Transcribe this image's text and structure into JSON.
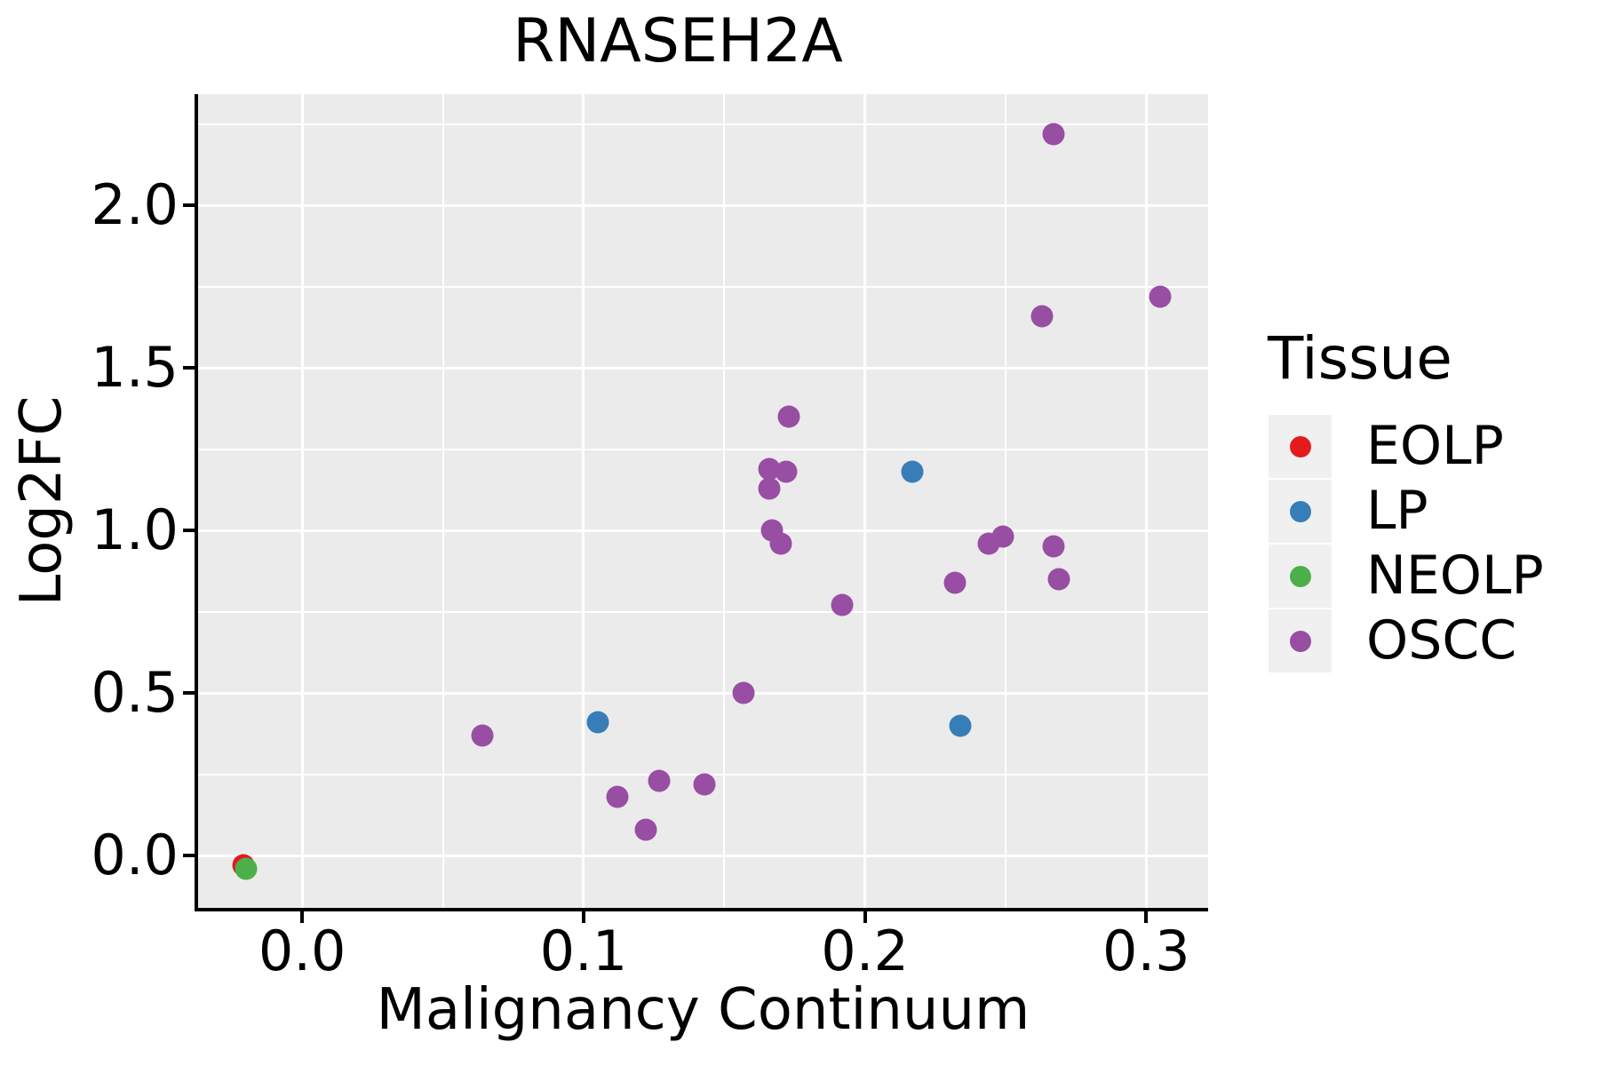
{
  "title": "RNASEH2A",
  "legend": {
    "title": "Tissue",
    "items": [
      {
        "label": "EOLP",
        "color": "#E41A1C"
      },
      {
        "label": "LP",
        "color": "#377EB8"
      },
      {
        "label": "NEOLP",
        "color": "#4DAF4A"
      },
      {
        "label": "OSCC",
        "color": "#984EA3"
      }
    ]
  },
  "chart_data": {
    "type": "scatter",
    "title": "RNASEH2A",
    "xlabel": "Malignancy Continuum",
    "ylabel": "Log2FC",
    "xlim": [
      -0.037,
      0.322
    ],
    "ylim": [
      -0.161,
      2.342
    ],
    "grid": true,
    "legend_position": "right",
    "x_ticks": [
      {
        "value": 0.0,
        "label": "0.0"
      },
      {
        "value": 0.1,
        "label": "0.1"
      },
      {
        "value": 0.2,
        "label": "0.2"
      },
      {
        "value": 0.3,
        "label": "0.3"
      }
    ],
    "y_ticks": [
      {
        "value": 0.0,
        "label": "0.0"
      },
      {
        "value": 0.5,
        "label": "0.5"
      },
      {
        "value": 1.0,
        "label": "1.0"
      },
      {
        "value": 1.5,
        "label": "1.5"
      },
      {
        "value": 2.0,
        "label": "2.0"
      }
    ],
    "x_minor": [
      0.05,
      0.15,
      0.25
    ],
    "y_minor": [
      0.25,
      0.75,
      1.25,
      1.75,
      2.25
    ],
    "series": [
      {
        "name": "EOLP",
        "color": "#E41A1C",
        "points": [
          [
            -0.021,
            -0.03
          ]
        ]
      },
      {
        "name": "LP",
        "color": "#377EB8",
        "points": [
          [
            0.105,
            0.41
          ],
          [
            0.217,
            1.18
          ],
          [
            0.234,
            0.4
          ]
        ]
      },
      {
        "name": "NEOLP",
        "color": "#4DAF4A",
        "points": [
          [
            -0.02,
            -0.04
          ]
        ]
      },
      {
        "name": "OSCC",
        "color": "#984EA3",
        "points": [
          [
            0.064,
            0.37
          ],
          [
            0.112,
            0.18
          ],
          [
            0.122,
            0.08
          ],
          [
            0.127,
            0.23
          ],
          [
            0.143,
            0.22
          ],
          [
            0.157,
            0.5
          ],
          [
            0.166,
            1.19
          ],
          [
            0.166,
            1.13
          ],
          [
            0.167,
            1.0
          ],
          [
            0.17,
            0.96
          ],
          [
            0.172,
            1.18
          ],
          [
            0.173,
            1.35
          ],
          [
            0.192,
            0.77
          ],
          [
            0.232,
            0.84
          ],
          [
            0.244,
            0.96
          ],
          [
            0.249,
            0.98
          ],
          [
            0.263,
            1.66
          ],
          [
            0.267,
            2.22
          ],
          [
            0.267,
            0.95
          ],
          [
            0.269,
            0.85
          ],
          [
            0.305,
            1.72
          ]
        ]
      }
    ],
    "colors": {
      "panel_bg": "#EBEBEB",
      "grid": "#FFFFFF",
      "axis": "#000000",
      "text": "#000000",
      "legend_key_bg": "#F0F0F0"
    }
  }
}
